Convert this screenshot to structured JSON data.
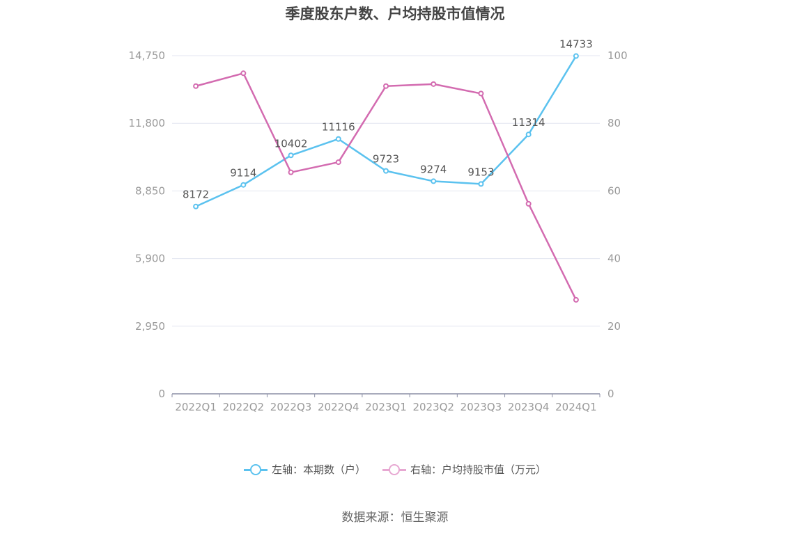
{
  "title": "季度股东户数、户均持股市值情况",
  "source": "数据来源：恒生聚源",
  "colors": {
    "left_series": "#5bc2ef",
    "right_series": "#d36bb0",
    "grid": "#e3e6f0",
    "axis": "#8c8fa6"
  },
  "legend": [
    {
      "label": "左轴：本期数（户）",
      "color": "#5bc2ef"
    },
    {
      "label": "右轴：户均持股市值（万元）",
      "color": "#d36bb0"
    }
  ],
  "chart_data": {
    "type": "line",
    "categories": [
      "2022Q1",
      "2022Q2",
      "2022Q3",
      "2022Q4",
      "2023Q1",
      "2023Q2",
      "2023Q3",
      "2023Q4",
      "2024Q1"
    ],
    "left_axis": {
      "ticks": [
        "0",
        "2,950",
        "5,900",
        "8,850",
        "11,800",
        "14,750"
      ],
      "ylim": [
        0,
        14750
      ]
    },
    "right_axis": {
      "ticks": [
        "0",
        "20",
        "40",
        "60",
        "80",
        "100"
      ],
      "ylim": [
        0,
        100
      ]
    },
    "grid": true,
    "legend_position": "bottom",
    "series": [
      {
        "name": "左轴：本期数（户）",
        "axis": "left",
        "color": "#5bc2ef",
        "values": [
          8172,
          9114,
          10402,
          11116,
          9723,
          9274,
          9153,
          11314,
          14733
        ],
        "labels": [
          "8172",
          "9114",
          "10402",
          "11116",
          "9723",
          "9274",
          "9153",
          "11314",
          "14733"
        ]
      },
      {
        "name": "右轴：户均持股市值（万元）",
        "axis": "right",
        "color": "#d36bb0",
        "values": [
          91,
          94.8,
          65.5,
          68.5,
          91,
          91.6,
          88.8,
          56.2,
          27.8
        ]
      }
    ]
  }
}
